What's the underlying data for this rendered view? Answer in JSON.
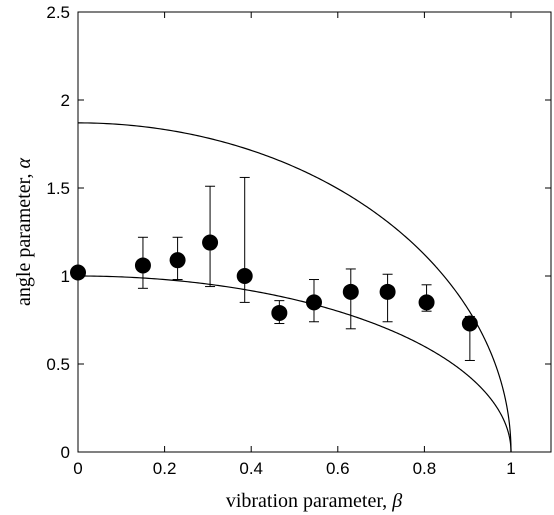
{
  "chart_data": {
    "type": "scatter",
    "xlabel": "vibration parameter, ",
    "xlabel_symbol": "β",
    "ylabel": "angle parameter, ",
    "ylabel_symbol": "α",
    "xlim": [
      0,
      1.1
    ],
    "ylim": [
      0,
      2.5
    ],
    "xticks": [
      0,
      0.2,
      0.4,
      0.6,
      0.8,
      1
    ],
    "xtick_labels": [
      "0",
      "0.2",
      "0.4",
      "0.6",
      "0.8",
      "1"
    ],
    "yticks": [
      0,
      0.5,
      1,
      1.5,
      2,
      2.5
    ],
    "ytick_labels": [
      "0",
      "0.5",
      "1",
      "1.5",
      "2",
      "2.5"
    ],
    "grid": false,
    "series": [
      {
        "marker": "filled-circle",
        "color": "#000000",
        "points": [
          {
            "x": 0.0,
            "y": 1.02,
            "y_low": 1.02,
            "y_high": 1.02
          },
          {
            "x": 0.15,
            "y": 1.06,
            "y_low": 0.93,
            "y_high": 1.22
          },
          {
            "x": 0.23,
            "y": 1.09,
            "y_low": 0.98,
            "y_high": 1.22
          },
          {
            "x": 0.305,
            "y": 1.19,
            "y_low": 0.94,
            "y_high": 1.51
          },
          {
            "x": 0.385,
            "y": 1.0,
            "y_low": 0.85,
            "y_high": 1.56
          },
          {
            "x": 0.465,
            "y": 0.79,
            "y_low": 0.73,
            "y_high": 0.86
          },
          {
            "x": 0.545,
            "y": 0.85,
            "y_low": 0.74,
            "y_high": 0.98
          },
          {
            "x": 0.63,
            "y": 0.91,
            "y_low": 0.7,
            "y_high": 1.04
          },
          {
            "x": 0.715,
            "y": 0.91,
            "y_low": 0.74,
            "y_high": 1.01
          },
          {
            "x": 0.805,
            "y": 0.85,
            "y_low": 0.8,
            "y_high": 0.95
          },
          {
            "x": 0.905,
            "y": 0.73,
            "y_low": 0.52,
            "y_high": 0.77
          }
        ]
      }
    ],
    "curves": [
      {
        "form": "a*sqrt(1-x^2)",
        "a": 1.87,
        "x_range": [
          0,
          1
        ]
      },
      {
        "form": "a*sqrt(1-x^2)",
        "a": 1.0,
        "x_range": [
          0,
          1
        ]
      }
    ]
  }
}
